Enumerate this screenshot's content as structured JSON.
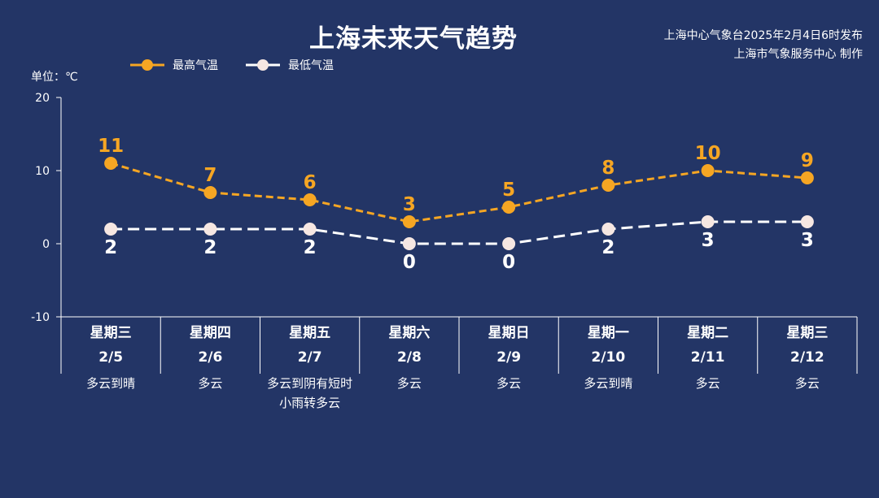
{
  "header": {
    "title": "上海未来天气趋势",
    "issuer": "上海中心气象台2025年2月4日6时发布",
    "producer": "上海市气象服务中心 制作"
  },
  "unit_label": "单位：℃",
  "colors": {
    "background": "#233566",
    "high": "#f6a623",
    "low": "#ffffff",
    "low_marker": "#f6e7e2"
  },
  "chart_data": {
    "type": "line",
    "categories": [
      "星期三",
      "星期四",
      "星期五",
      "星期六",
      "星期日",
      "星期一",
      "星期二",
      "星期三"
    ],
    "dates": [
      "2/5",
      "2/6",
      "2/7",
      "2/8",
      "2/9",
      "2/10",
      "2/11",
      "2/12"
    ],
    "weather": [
      "多云到晴",
      "多云",
      "多云到阴有短时小雨转多云",
      "多云",
      "多云",
      "多云到晴",
      "多云",
      "多云"
    ],
    "series": [
      {
        "name": "最高气温",
        "values": [
          11,
          7,
          6,
          3,
          5,
          8,
          10,
          9
        ]
      },
      {
        "name": "最低气温",
        "values": [
          2,
          2,
          2,
          0,
          0,
          2,
          3,
          3
        ]
      }
    ],
    "yticks": [
      20,
      10,
      0,
      -10
    ],
    "ylim": [
      -10,
      20
    ],
    "legend": "top-left",
    "grid": false
  }
}
